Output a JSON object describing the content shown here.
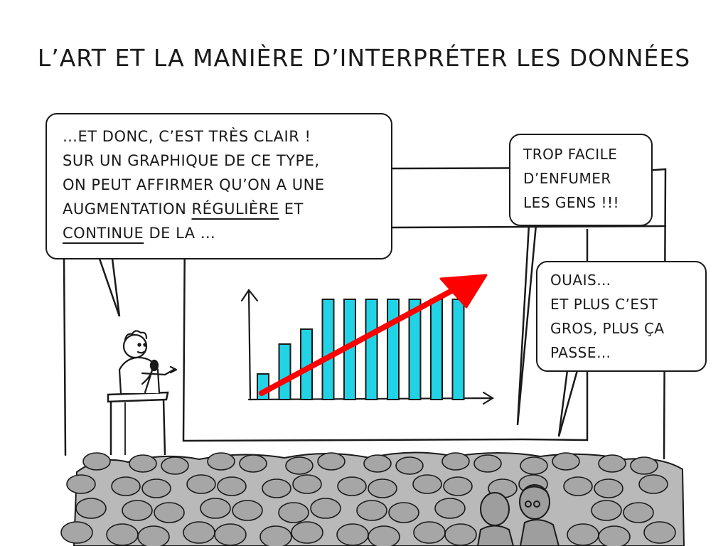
{
  "title": "L’ART ET LA MANIÈRE D’INTERPRÉTER LES DONNÉES",
  "speaker_bubble": {
    "line1": "…ET DONC, C’EST TRÈS CLAIR !",
    "line2": "SUR UN GRAPHIQUE DE CE TYPE,",
    "line3": "ON PEUT AFFIRMER QU’ON A UNE",
    "line4_pre": "AUGMENTATION ",
    "line4_underlined": "RÉGULIÈRE",
    "line4_post": " ET",
    "line5_underlined": "CONTINUE",
    "line5_post": " DE LA …"
  },
  "audience_bubble_1": {
    "line1": "TROP FACILE",
    "line2": "D’ENFUMER",
    "line3": "LES GENS !!!"
  },
  "audience_bubble_2": {
    "line1": "OUAIS…",
    "line2": "ET PLUS C’EST",
    "line3": "GROS, PLUS ÇA",
    "line4": "PASSE…"
  },
  "chart_data": {
    "type": "bar",
    "values": [
      1.2,
      2.6,
      3.3,
      4.7,
      4.7,
      4.7,
      4.7,
      4.7,
      4.7,
      4.7
    ],
    "ylim": [
      0,
      5
    ],
    "trend_arrow": "increasing",
    "bar_color": "#22d3e6",
    "arrow_color": "#ff0000",
    "axis_ticks": false,
    "gridlines": false
  },
  "colors": {
    "crowd": "#b9b9b9",
    "crowd_heads": "#a6a6a6",
    "ink": "#1a1a1a"
  }
}
